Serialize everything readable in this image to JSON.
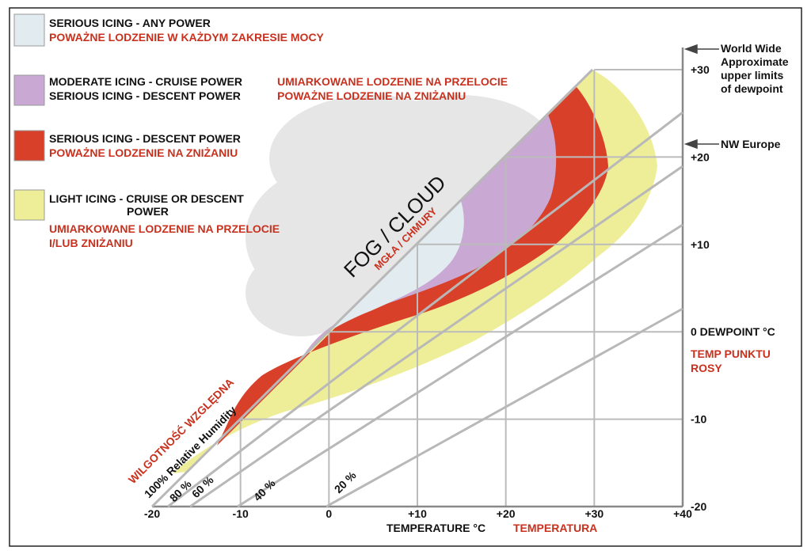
{
  "legend": [
    {
      "english": [
        "SERIOUS ICING - ANY POWER"
      ],
      "polish": [
        "POWAŻNE LODZENIE W KAŻDYM ZAKRESIE MOCY"
      ]
    },
    {
      "english": [
        "MODERATE ICING - CRUISE POWER",
        "SERIOUS ICING - DESCENT POWER"
      ],
      "polish": [
        "UMIARKOWANE LODZENIE NA PRZELOCIE",
        "POWAŻNE LODZENIE NA ZNIŻANIU"
      ]
    },
    {
      "english": [
        "SERIOUS ICING - DESCENT POWER"
      ],
      "polish": [
        "POWAŻNE LODZENIE NA ZNIŻANIU"
      ]
    },
    {
      "english": [
        "LIGHT ICING - CRUISE OR DESCENT",
        "POWER"
      ],
      "polish": [
        "UMIARKOWANE LODZENIE NA PRZELOCIE",
        "I/LUB ZNIŻANIU"
      ]
    }
  ],
  "fog_label": "FOG / CLOUD",
  "fog_label_polish": "MGŁA / CHMURY",
  "humidity": {
    "title": "100% Relative Humidity",
    "title_polish": "WILGOTNOŚĆ WZGLĘDNA",
    "lines": [
      "80 %",
      "60 %",
      "40 %",
      "20 %"
    ]
  },
  "x_axis": {
    "title": "TEMPERATURE °C",
    "title_polish": "TEMPERATURA",
    "lim": [
      -20,
      40
    ],
    "ticks": [
      -20,
      -10,
      0,
      {
        "value": 10,
        "label": "+10"
      },
      {
        "value": 20,
        "label": "+20"
      },
      {
        "value": 30,
        "label": "+30"
      },
      {
        "value": 40,
        "label": "+40"
      }
    ]
  },
  "y_axis": {
    "title_polish": [
      "TEMP PUNKTU",
      "ROSY"
    ],
    "lim": [
      -20,
      30
    ],
    "ticks": [
      -20,
      -10,
      {
        "value": 0,
        "label": "0 DEWPOINT °C"
      },
      {
        "value": 10,
        "label": "+10"
      },
      {
        "value": 20,
        "label": "+20"
      },
      {
        "value": 30,
        "label": "+30"
      }
    ]
  },
  "annotations": [
    {
      "lines": [
        "World Wide",
        "Approximate",
        "upper limits",
        "of dewpoint"
      ]
    },
    {
      "lines": [
        "NW Europe"
      ]
    }
  ]
}
